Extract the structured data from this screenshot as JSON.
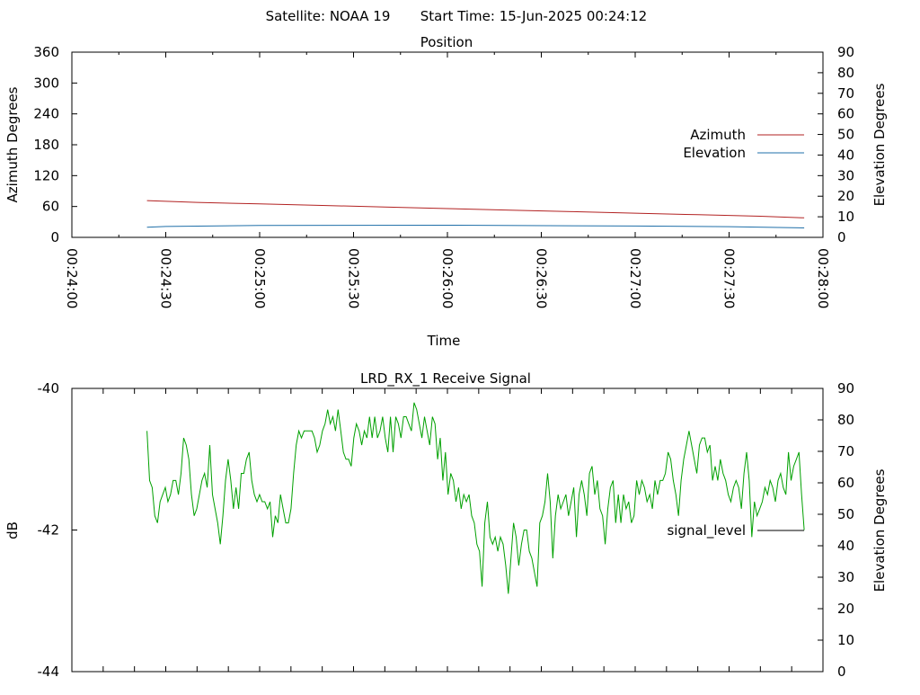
{
  "header": {
    "satellite": "Satellite: NOAA 19",
    "start_time": "Start Time: 15-Jun-2025 00:24:12"
  },
  "chart_data": [
    {
      "type": "line",
      "title": "Position",
      "xlabel": "Time",
      "ylabel": "Azimuth Degrees",
      "y2label": "Elevation Degrees",
      "xlim": [
        "00:24:00",
        "00:28:00"
      ],
      "x_ticks": [
        "00:24:00",
        "00:24:30",
        "00:25:00",
        "00:25:30",
        "00:26:00",
        "00:26:30",
        "00:27:00",
        "00:27:30",
        "00:28:00"
      ],
      "ylim": [
        0,
        360
      ],
      "y_ticks": [
        0,
        60,
        120,
        180,
        240,
        300,
        360
      ],
      "y2lim": [
        0,
        90
      ],
      "y2_ticks": [
        0,
        10,
        20,
        30,
        40,
        50,
        60,
        70,
        80,
        90
      ],
      "grid": false,
      "legend_position": "right",
      "series": [
        {
          "name": "Azimuth",
          "color": "#b22222",
          "axis": "left",
          "x": [
            "00:24:24",
            "00:24:40",
            "00:25:00",
            "00:25:20",
            "00:25:40",
            "00:26:00",
            "00:26:20",
            "00:26:40",
            "00:27:00",
            "00:27:20",
            "00:27:40",
            "00:27:54"
          ],
          "values": [
            71.5,
            68,
            65,
            62,
            59,
            56,
            53,
            50,
            47,
            44,
            41,
            38
          ]
        },
        {
          "name": "Elevation",
          "color": "#1f6fa8",
          "axis": "right",
          "x": [
            "00:24:24",
            "00:24:30",
            "00:25:00",
            "00:26:00",
            "00:27:00",
            "00:27:30",
            "00:27:54"
          ],
          "values": [
            4.9,
            5.3,
            5.8,
            5.9,
            5.5,
            5.2,
            4.6
          ]
        }
      ]
    },
    {
      "type": "line",
      "title": "LRD_RX_1 Receive Signal",
      "ylabel": "dB",
      "y2label": "Elevation Degrees",
      "ylim": [
        -44,
        -40
      ],
      "y_ticks": [
        -44,
        -42,
        -40
      ],
      "y2lim": [
        0,
        90
      ],
      "y2_ticks": [
        0,
        10,
        20,
        30,
        40,
        50,
        60,
        70,
        80,
        90
      ],
      "xlim": [
        "00:24:00",
        "00:28:00"
      ],
      "grid": false,
      "legend_position": "right",
      "series": [
        {
          "name": "signal_level",
          "color": "#00a000",
          "x_range": [
            "00:24:24",
            "00:27:54"
          ],
          "values": [
            -40.6,
            -41.3,
            -41.4,
            -41.8,
            -41.9,
            -41.6,
            -41.5,
            -41.4,
            -41.6,
            -41.5,
            -41.3,
            -41.3,
            -41.5,
            -41.2,
            -40.7,
            -40.8,
            -41.0,
            -41.5,
            -41.8,
            -41.7,
            -41.5,
            -41.3,
            -41.2,
            -41.4,
            -40.8,
            -41.5,
            -41.7,
            -41.9,
            -42.2,
            -41.8,
            -41.3,
            -41.0,
            -41.3,
            -41.7,
            -41.4,
            -41.7,
            -41.2,
            -41.2,
            -41.0,
            -40.9,
            -41.3,
            -41.5,
            -41.6,
            -41.5,
            -41.6,
            -41.6,
            -41.7,
            -41.6,
            -42.1,
            -41.8,
            -41.9,
            -41.5,
            -41.7,
            -41.9,
            -41.9,
            -41.7,
            -41.2,
            -40.8,
            -40.6,
            -40.7,
            -40.6,
            -40.6,
            -40.6,
            -40.6,
            -40.7,
            -40.9,
            -40.8,
            -40.6,
            -40.5,
            -40.3,
            -40.5,
            -40.4,
            -40.6,
            -40.3,
            -40.6,
            -40.9,
            -41.0,
            -41.0,
            -41.1,
            -40.7,
            -40.5,
            -40.6,
            -40.8,
            -40.6,
            -40.7,
            -40.4,
            -40.7,
            -40.4,
            -40.7,
            -40.6,
            -40.4,
            -40.7,
            -40.9,
            -40.4,
            -40.9,
            -40.4,
            -40.5,
            -40.7,
            -40.4,
            -40.4,
            -40.5,
            -40.6,
            -40.2,
            -40.3,
            -40.5,
            -40.7,
            -40.4,
            -40.6,
            -40.8,
            -40.4,
            -40.5,
            -41.0,
            -40.7,
            -41.3,
            -40.9,
            -41.5,
            -41.2,
            -41.3,
            -41.6,
            -41.4,
            -41.7,
            -41.5,
            -41.6,
            -41.5,
            -41.8,
            -41.9,
            -42.2,
            -42.3,
            -42.8,
            -41.9,
            -41.6,
            -42.1,
            -42.2,
            -42.1,
            -42.3,
            -42.1,
            -42.2,
            -42.5,
            -42.9,
            -42.4,
            -41.9,
            -42.1,
            -42.5,
            -42.2,
            -42.0,
            -42.0,
            -42.3,
            -42.4,
            -42.6,
            -42.8,
            -41.9,
            -41.8,
            -41.6,
            -41.2,
            -41.6,
            -42.4,
            -41.8,
            -41.5,
            -41.7,
            -41.6,
            -41.5,
            -41.8,
            -41.6,
            -41.4,
            -42.1,
            -41.5,
            -41.3,
            -41.5,
            -41.8,
            -41.2,
            -41.1,
            -41.5,
            -41.3,
            -41.7,
            -41.8,
            -42.2,
            -41.7,
            -41.4,
            -41.3,
            -41.9,
            -41.5,
            -41.9,
            -41.5,
            -41.7,
            -41.6,
            -41.9,
            -41.8,
            -41.3,
            -41.5,
            -41.3,
            -41.4,
            -41.6,
            -41.5,
            -41.7,
            -41.3,
            -41.5,
            -41.3,
            -41.3,
            -41.2,
            -40.9,
            -41.0,
            -41.3,
            -41.5,
            -41.8,
            -41.3,
            -41.0,
            -40.8,
            -40.6,
            -40.8,
            -41.0,
            -41.2,
            -40.8,
            -40.7,
            -40.7,
            -40.9,
            -40.8,
            -41.3,
            -41.1,
            -41.3,
            -41.0,
            -41.2,
            -41.3,
            -41.5,
            -41.6,
            -41.4,
            -41.3,
            -41.4,
            -41.7,
            -41.2,
            -40.9,
            -41.3,
            -42.1,
            -41.6,
            -41.8,
            -41.7,
            -41.6,
            -41.4,
            -41.5,
            -41.3,
            -41.4,
            -41.6,
            -41.3,
            -41.2,
            -41.4,
            -41.5,
            -40.9,
            -41.3,
            -41.1,
            -41.0,
            -40.9,
            -41.5,
            -42.0
          ]
        }
      ]
    }
  ]
}
